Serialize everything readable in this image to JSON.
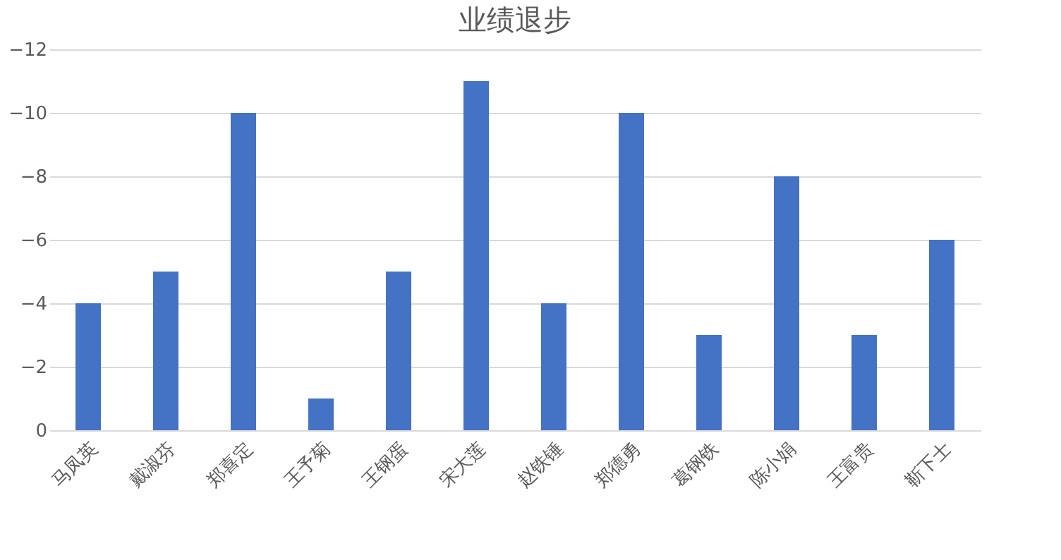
{
  "chart_data": {
    "type": "bar",
    "title": "业绩退步",
    "categories": [
      "马凤英",
      "戴淑芬",
      "郑喜定",
      "王予菊",
      "王钢蛋",
      "宋大莲",
      "赵铁锤",
      "郑德勇",
      "葛钢铁",
      "陈小娟",
      "王富贵",
      "靳下士"
    ],
    "values": [
      -4,
      -5,
      -10,
      -1,
      -5,
      -11,
      -4,
      -10,
      -3,
      -8,
      -3,
      -6
    ],
    "color": "#4472c4",
    "ylim": [
      0,
      -12
    ],
    "yticks": [
      0,
      -2,
      -4,
      -6,
      -8,
      -10,
      -12
    ],
    "grid": "y"
  }
}
